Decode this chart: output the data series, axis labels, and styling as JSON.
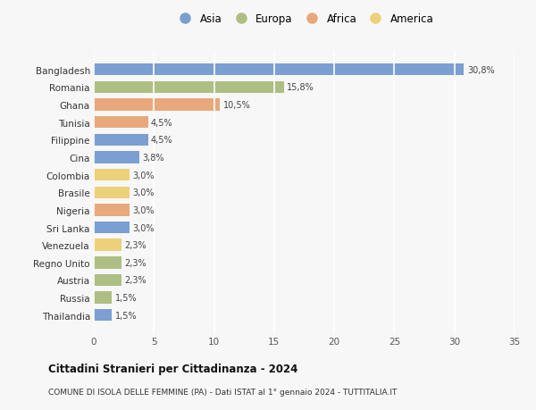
{
  "countries": [
    "Bangladesh",
    "Romania",
    "Ghana",
    "Tunisia",
    "Filippine",
    "Cina",
    "Colombia",
    "Brasile",
    "Nigeria",
    "Sri Lanka",
    "Venezuela",
    "Regno Unito",
    "Austria",
    "Russia",
    "Thailandia"
  ],
  "values": [
    30.8,
    15.8,
    10.5,
    4.5,
    4.5,
    3.8,
    3.0,
    3.0,
    3.0,
    3.0,
    2.3,
    2.3,
    2.3,
    1.5,
    1.5
  ],
  "labels": [
    "30,8%",
    "15,8%",
    "10,5%",
    "4,5%",
    "4,5%",
    "3,8%",
    "3,0%",
    "3,0%",
    "3,0%",
    "3,0%",
    "2,3%",
    "2,3%",
    "2,3%",
    "1,5%",
    "1,5%"
  ],
  "continents": [
    "Asia",
    "Europa",
    "Africa",
    "Africa",
    "Asia",
    "Asia",
    "America",
    "America",
    "Africa",
    "Asia",
    "America",
    "Europa",
    "Europa",
    "Europa",
    "Asia"
  ],
  "continent_colors": {
    "Asia": "#7B9FD0",
    "Europa": "#ADBF82",
    "Africa": "#E8A87C",
    "America": "#EDD07A"
  },
  "legend_order": [
    "Asia",
    "Europa",
    "Africa",
    "America"
  ],
  "title": "Cittadini Stranieri per Cittadinanza - 2024",
  "subtitle": "COMUNE DI ISOLA DELLE FEMMINE (PA) - Dati ISTAT al 1° gennaio 2024 - TUTTITALIA.IT",
  "xlim": [
    0,
    35
  ],
  "xticks": [
    0,
    5,
    10,
    15,
    20,
    25,
    30,
    35
  ],
  "background_color": "#f7f7f7",
  "grid_color": "#ffffff",
  "bar_height": 0.68
}
